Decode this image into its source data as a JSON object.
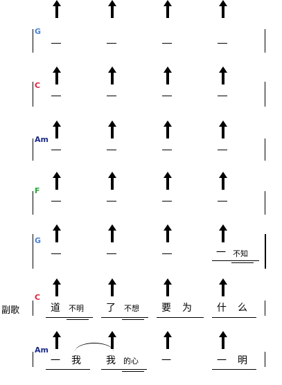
{
  "section_label": "副歌",
  "rows": [
    {
      "chord": "G",
      "chord_color": "#4a7fd6"
    },
    {
      "chord": "C",
      "chord_color": "#e0203a"
    },
    {
      "chord": "Am",
      "chord_color": "#1a2a8a"
    },
    {
      "chord": "F",
      "chord_color": "#22aa33"
    },
    {
      "chord": "G",
      "chord_color": "#4a7fd6"
    },
    {
      "chord": "C",
      "chord_color": "#e0203a"
    },
    {
      "chord": "Am",
      "chord_color": "#1a2a8a"
    }
  ],
  "row5_lyrics": {
    "beat4_dash": "一",
    "beat4_small": "不知"
  },
  "row6_lyrics": {
    "b1_big": "道",
    "b1_small": "不明",
    "b2_big": "了",
    "b2_small": "不想",
    "b3_a": "要",
    "b3_b": "为",
    "b4_a": "什",
    "b4_b": "么"
  },
  "row7_lyrics": {
    "b1_a": "一",
    "b1_b": "我",
    "b2_a": "我",
    "b2_small": "的心",
    "b3_a": "一",
    "b4_a": "一",
    "b4_b": "明"
  },
  "icons": {
    "strum": "up-arrow"
  }
}
